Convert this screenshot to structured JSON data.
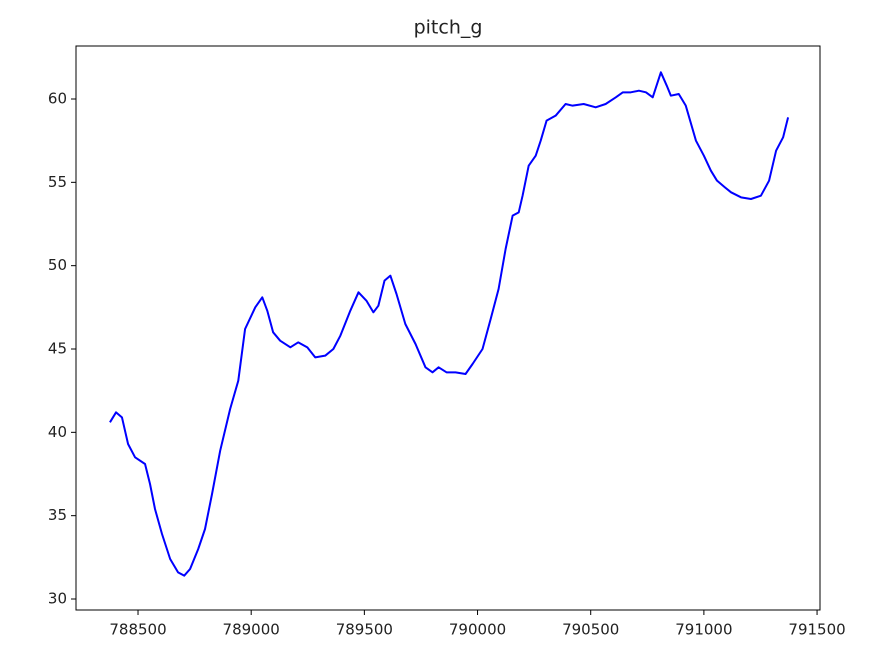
{
  "chart_data": {
    "type": "line",
    "title": "pitch_g",
    "x": [
      788376,
      788403,
      788429,
      788456,
      788487,
      788531,
      788553,
      788575,
      788606,
      788642,
      788677,
      788704,
      788730,
      788766,
      788796,
      788827,
      788863,
      788907,
      788943,
      788973,
      789018,
      789049,
      789071,
      789097,
      789128,
      789173,
      789208,
      789248,
      789283,
      789327,
      789363,
      789394,
      789438,
      789474,
      789509,
      789540,
      789562,
      789589,
      789615,
      789642,
      789681,
      789726,
      789770,
      789801,
      789828,
      789863,
      789903,
      789947,
      789978,
      790022,
      790058,
      790093,
      790124,
      790155,
      790182,
      790199,
      790226,
      790257,
      790279,
      790305,
      790345,
      790389,
      790420,
      790469,
      790522,
      790566,
      790611,
      790642,
      790677,
      790713,
      790744,
      790774,
      790810,
      790836,
      790854,
      790889,
      790920,
      790965,
      791000,
      791031,
      791058,
      791093,
      791120,
      791164,
      791208,
      791252,
      791288,
      791319,
      791350,
      791372
    ],
    "series": [
      {
        "name": "pitch_g",
        "color": "#0000ff",
        "values": [
          40.6,
          41.2,
          40.9,
          39.3,
          38.5,
          38.1,
          36.9,
          35.4,
          33.9,
          32.4,
          31.6,
          31.4,
          31.8,
          33.0,
          34.2,
          36.3,
          38.9,
          41.4,
          43.1,
          46.2,
          47.5,
          48.1,
          47.3,
          46.0,
          45.5,
          45.1,
          45.4,
          45.1,
          44.5,
          44.6,
          45.0,
          45.8,
          47.3,
          48.4,
          47.9,
          47.2,
          47.6,
          49.1,
          49.4,
          48.3,
          46.5,
          45.3,
          43.9,
          43.6,
          43.9,
          43.6,
          43.6,
          43.5,
          44.1,
          45.0,
          46.8,
          48.6,
          51.0,
          53.0,
          53.2,
          54.2,
          56.0,
          56.6,
          57.5,
          58.7,
          59.0,
          59.7,
          59.6,
          59.7,
          59.5,
          59.7,
          60.1,
          60.4,
          60.4,
          60.5,
          60.4,
          60.1,
          61.6,
          60.8,
          60.2,
          60.3,
          59.6,
          57.5,
          56.6,
          55.7,
          55.1,
          54.7,
          54.4,
          54.1,
          54.0,
          54.2,
          55.1,
          56.9,
          57.7,
          58.9
        ]
      }
    ],
    "xlim": [
      788226,
      791513
    ],
    "xticks": [
      788500,
      789000,
      789500,
      790000,
      790500,
      791000,
      791500
    ],
    "ylim": [
      29.34,
      63.18
    ],
    "yticks": [
      30,
      35,
      40,
      45,
      50,
      55,
      60
    ]
  }
}
